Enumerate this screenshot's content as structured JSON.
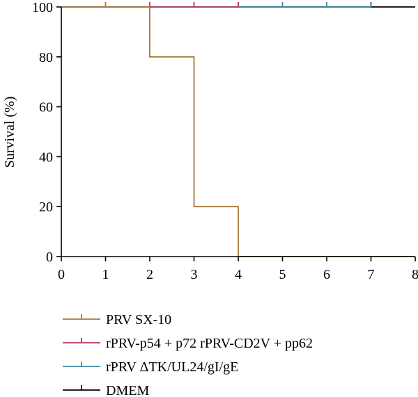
{
  "chart_data": {
    "type": "line",
    "step": true,
    "title": "",
    "xlabel": "",
    "ylabel": "Survival (%)",
    "xlim": [
      0,
      8
    ],
    "ylim": [
      0,
      100
    ],
    "xticks": [
      "0",
      "1",
      "2",
      "3",
      "4",
      "5",
      "6",
      "7",
      "8"
    ],
    "yticks": [
      "0",
      "20",
      "40",
      "60",
      "80",
      "100"
    ],
    "grid": false,
    "legend": "bottom",
    "series": [
      {
        "name": "PRV SX-10",
        "color": "#a7783c",
        "steps": [
          [
            0,
            100
          ],
          [
            2,
            80
          ],
          [
            3,
            20
          ],
          [
            4,
            0
          ],
          [
            8,
            0
          ]
        ],
        "censor_marks": [
          1
        ]
      },
      {
        "name": "rPRV-p54 + p72 rPRV-CD2V + pp62",
        "color": "#b03a62",
        "steps": [
          [
            0,
            100
          ],
          [
            4,
            100
          ]
        ],
        "censor_marks": [
          2,
          3,
          4
        ]
      },
      {
        "name": "rPRV ΔTK/UL24/gI/gE",
        "color": "#3a8aa2",
        "steps": [
          [
            0,
            100
          ],
          [
            7,
            100
          ]
        ],
        "censor_marks": [
          4,
          5,
          6,
          7
        ]
      },
      {
        "name": "DMEM",
        "color": "#000000",
        "steps": [
          [
            0,
            100
          ],
          [
            8,
            100
          ]
        ],
        "censor_marks": [
          7
        ]
      }
    ]
  }
}
